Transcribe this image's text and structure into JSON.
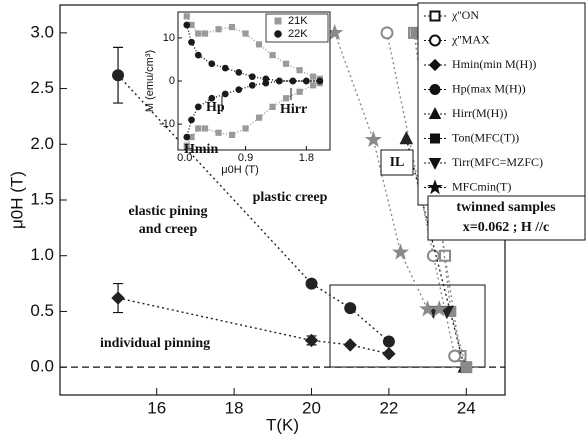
{
  "chart_data": [
    {
      "type": "scatter",
      "xlabel": "T(K)",
      "ylabel": "μ0H (T)",
      "xlim": [
        13.5,
        25
      ],
      "ylim": [
        -0.25,
        3.25
      ],
      "xticks": [
        16,
        18,
        20,
        22,
        24
      ],
      "yticks": [
        {
          "value": 0,
          "label": "0.0"
        },
        {
          "value": 0.5,
          "label": "0.5"
        },
        {
          "value": 1,
          "label": "1.0"
        },
        {
          "value": 1.5,
          "label": "1.5"
        },
        {
          "value": 2,
          "label": "2.0"
        },
        {
          "value": 2.5,
          "label": "2.5"
        },
        {
          "value": 3,
          "label": "3.0"
        }
      ],
      "zero_line": true,
      "legend": "upper right",
      "annotations": [
        "plastic creep",
        "elastic pining",
        "and creep",
        "individual pinning",
        "IL",
        "twinned samples",
        "x=0.062 ;  H //c"
      ],
      "series": [
        {
          "name": "χ''ON",
          "marker": "open-square",
          "color": "#8a8a8a",
          "x": [
            22.65,
            23.45,
            23.85,
            24.0
          ],
          "values": [
            3.0,
            1.0,
            0.1,
            0.0
          ]
        },
        {
          "name": "χ''MAX",
          "marker": "open-circle",
          "color": "#8a8a8a",
          "x": [
            21.95,
            23.15,
            23.7
          ],
          "values": [
            3.0,
            1.0,
            0.1
          ]
        },
        {
          "name": "Hmin(min M(H))",
          "marker": "diamond",
          "color": "#222222",
          "x": [
            15,
            20,
            21,
            22
          ],
          "values": [
            0.62,
            0.24,
            0.2,
            0.12
          ],
          "errors": [
            0.13,
            0.04,
            null,
            null
          ]
        },
        {
          "name": "Hp(max M(H))",
          "marker": "circle",
          "color": "#222222",
          "x": [
            15,
            20,
            21,
            22
          ],
          "values": [
            2.62,
            0.75,
            0.53,
            0.23
          ],
          "errors": [
            0.25,
            null,
            null,
            null
          ]
        },
        {
          "name": "Hirr(M(H))",
          "marker": "triangle",
          "color": "#222222",
          "x": [
            22.45,
            23.95
          ],
          "values": [
            2.05,
            0.0
          ]
        },
        {
          "name": "Ton(MFC(T))",
          "marker": "square",
          "color": "#8a8a8a",
          "x": [
            22.7,
            23.1,
            23.6,
            24.0
          ],
          "values": [
            3.0,
            2.0,
            0.5,
            0.0
          ]
        },
        {
          "name": "Tirr(MFC=MZFC)",
          "marker": "down-triangle",
          "color": "#222222",
          "x": [
            23.15,
            23.5
          ],
          "values": [
            0.5,
            0.5
          ]
        },
        {
          "name": "MFCmin(T)",
          "marker": "star",
          "color": "#8a8a8a",
          "x": [
            20.6,
            21.6,
            22.3,
            23.0,
            23.3
          ],
          "values": [
            3.0,
            2.04,
            1.03,
            0.52,
            0.52
          ]
        }
      ]
    },
    {
      "type": "line",
      "xlabel": "μ0H (T)",
      "ylabel": "M (emu/cm³)",
      "xlim": [
        -0.1,
        2.15
      ],
      "ylim": [
        -16,
        16
      ],
      "xticks": [
        {
          "value": 0,
          "label": "0.0"
        },
        {
          "value": 0.9,
          "label": "0.9"
        },
        {
          "value": 1.8,
          "label": "1.8"
        }
      ],
      "yticks": [
        -10,
        0,
        10
      ],
      "legend": "upper right",
      "annotations": [
        "Hp",
        "Hirr",
        "Hmin"
      ],
      "series": [
        {
          "name": "21K",
          "marker": "square",
          "color": "#9a9a9a",
          "x": [
            0.03,
            0.1,
            0.2,
            0.3,
            0.5,
            0.7,
            0.9,
            1.1,
            1.3,
            1.5,
            1.7,
            1.9,
            2.0,
            2.0,
            1.9,
            1.7,
            1.5,
            1.3,
            1.1,
            0.9,
            0.7,
            0.5,
            0.3,
            0.2,
            0.1,
            0.03
          ],
          "values": [
            15,
            13,
            11,
            11,
            12,
            12.5,
            11,
            8.5,
            6,
            4,
            2.5,
            1,
            0.5,
            -0.5,
            -1,
            -2.5,
            -4,
            -6,
            -8.5,
            -11,
            -12.5,
            -12,
            -11,
            -11,
            -13,
            -15
          ]
        },
        {
          "name": "22K",
          "marker": "circle",
          "color": "#1a1a1a",
          "x": [
            0.03,
            0.1,
            0.2,
            0.4,
            0.6,
            0.8,
            1.0,
            1.2,
            1.4,
            1.6,
            1.8,
            2.0,
            2.0,
            1.8,
            1.6,
            1.4,
            1.2,
            1.0,
            0.8,
            0.6,
            0.4,
            0.2,
            0.1,
            0.03
          ],
          "values": [
            13,
            9,
            6,
            4,
            3,
            2,
            1,
            0.5,
            0,
            0,
            0,
            0,
            0,
            0,
            0,
            0,
            -0.5,
            -1,
            -2,
            -3,
            -4,
            -6,
            -9,
            -13
          ]
        }
      ]
    }
  ]
}
